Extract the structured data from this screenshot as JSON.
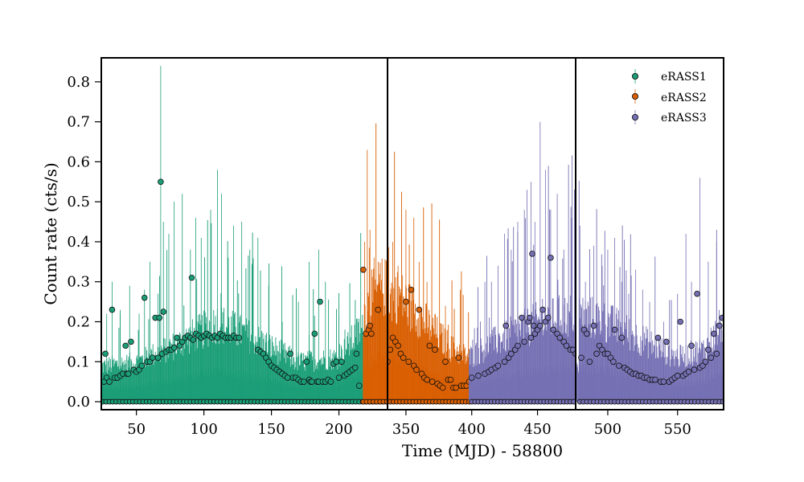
{
  "chart_data": {
    "type": "scatter",
    "xlabel": "Time (MJD) - 58800",
    "ylabel": "Count rate (cts/s)",
    "ylim": [
      -0.02,
      0.86
    ],
    "y_ticks": [
      "0.0",
      "0.1",
      "0.2",
      "0.3",
      "0.4",
      "0.5",
      "0.6",
      "0.7",
      "0.8"
    ],
    "y_tick_values": [
      0.0,
      0.1,
      0.2,
      0.3,
      0.4,
      0.5,
      0.6,
      0.7,
      0.8
    ],
    "grid": false,
    "legend_position": "top-right",
    "panels": [
      {
        "xlim": [
          24,
          236
        ],
        "x_ticks": [
          "50",
          "100",
          "150",
          "200"
        ],
        "x_tick_values": [
          50,
          100,
          150,
          200
        ]
      },
      {
        "xlim": [
          336,
          479
        ],
        "x_ticks": [
          "350",
          "400",
          "450"
        ],
        "x_tick_values": [
          350,
          400,
          450
        ]
      },
      {
        "xlim": [
          477,
          583
        ],
        "x_ticks": [
          "500",
          "550"
        ],
        "x_tick_values": [
          500,
          550
        ]
      }
    ],
    "series": [
      {
        "name": "eRASS1",
        "color": "#1b9e77",
        "x": [
          26,
          27,
          28,
          30,
          32,
          34,
          36,
          38,
          40,
          42,
          43,
          44,
          46,
          48,
          50,
          52,
          54,
          56,
          58,
          60,
          62,
          64,
          66,
          67,
          68,
          69,
          70,
          72,
          74,
          76,
          78,
          80,
          82,
          84,
          86,
          88,
          90,
          91,
          92,
          94,
          96,
          98,
          100,
          102,
          104,
          106,
          108,
          110,
          112,
          114,
          116,
          118,
          120,
          122,
          124,
          126,
          140,
          142,
          144,
          146,
          148,
          150,
          152,
          154,
          156,
          158,
          160,
          162,
          164,
          166,
          168,
          170,
          172,
          174,
          176,
          178,
          179,
          180,
          182,
          184,
          185,
          186,
          188,
          190,
          192,
          194,
          196,
          198,
          200,
          202,
          204,
          206,
          208,
          210,
          212,
          213,
          215
        ],
        "y": [
          0.05,
          0.12,
          0.06,
          0.05,
          0.23,
          0.06,
          0.06,
          0.065,
          0.07,
          0.14,
          0.07,
          0.07,
          0.15,
          0.08,
          0.075,
          0.08,
          0.09,
          0.26,
          0.1,
          0.1,
          0.11,
          0.21,
          0.11,
          0.21,
          0.55,
          0.12,
          0.225,
          0.125,
          0.13,
          0.13,
          0.135,
          0.16,
          0.14,
          0.15,
          0.16,
          0.165,
          0.16,
          0.31,
          0.155,
          0.17,
          0.165,
          0.16,
          0.165,
          0.17,
          0.165,
          0.16,
          0.165,
          0.16,
          0.17,
          0.165,
          0.16,
          0.16,
          0.16,
          0.165,
          0.16,
          0.16,
          0.13,
          0.125,
          0.12,
          0.11,
          0.1,
          0.09,
          0.085,
          0.08,
          0.075,
          0.07,
          0.065,
          0.06,
          0.12,
          0.06,
          0.06,
          0.055,
          0.05,
          0.05,
          0.1,
          0.055,
          0.05,
          0.05,
          0.17,
          0.05,
          0.05,
          0.25,
          0.05,
          0.05,
          0.055,
          0.05,
          0.095,
          0.1,
          0.06,
          0.1,
          0.065,
          0.07,
          0.075,
          0.08,
          0.085,
          0.12,
          0.04
        ],
        "zero_points": [
          25,
          236,
          2.5
        ],
        "envelope": [
          [
            24,
            0.04
          ],
          [
            50,
            0.045
          ],
          [
            80,
            0.065
          ],
          [
            110,
            0.09
          ],
          [
            140,
            0.07
          ],
          [
            170,
            0.045
          ],
          [
            200,
            0.05
          ],
          [
            215,
            0.08
          ]
        ],
        "bar_range": [
          24,
          218
        ],
        "bar_step": 0.45,
        "bar_height_hint": [
          0.1,
          0.4
        ],
        "tall_bars": [
          [
            28,
            0.22
          ],
          [
            32,
            0.3
          ],
          [
            38,
            0.23
          ],
          [
            45,
            0.29
          ],
          [
            52,
            0.22
          ],
          [
            56,
            0.28
          ],
          [
            60,
            0.35
          ],
          [
            66,
            0.27
          ],
          [
            68,
            0.84
          ],
          [
            70,
            0.45
          ],
          [
            74,
            0.42
          ],
          [
            78,
            0.5
          ],
          [
            84,
            0.52
          ],
          [
            90,
            0.38
          ],
          [
            94,
            0.46
          ],
          [
            98,
            0.41
          ],
          [
            105,
            0.48
          ],
          [
            110,
            0.58
          ],
          [
            113,
            0.52
          ],
          [
            118,
            0.36
          ],
          [
            122,
            0.44
          ],
          [
            128,
            0.45
          ],
          [
            134,
            0.38
          ],
          [
            140,
            0.41
          ],
          [
            148,
            0.29
          ],
          [
            158,
            0.2
          ],
          [
            170,
            0.25
          ],
          [
            178,
            0.35
          ],
          [
            185,
            0.38
          ],
          [
            190,
            0.3
          ],
          [
            200,
            0.22
          ]
        ]
      },
      {
        "name": "eRASS2",
        "color": "#d95f02",
        "x": [
          218,
          220,
          222,
          223,
          224,
          229,
          336,
          338,
          340,
          342,
          344,
          346,
          348,
          350,
          352,
          354,
          356,
          358,
          360,
          362,
          364,
          366,
          368,
          370,
          372,
          374,
          376,
          378,
          380,
          382,
          384,
          386,
          388,
          390,
          392,
          394,
          396,
          398
        ],
        "y": [
          0.33,
          0.17,
          0.18,
          0.19,
          0.17,
          0.23,
          0.1,
          0.13,
          0.16,
          0.15,
          0.14,
          0.12,
          0.11,
          0.25,
          0.1,
          0.28,
          0.09,
          0.08,
          0.23,
          0.07,
          0.06,
          0.055,
          0.14,
          0.05,
          0.13,
          0.045,
          0.04,
          0.035,
          0.1,
          0.055,
          0.055,
          0.035,
          0.035,
          0.11,
          0.04,
          0.04,
          0.04,
          0.05
        ],
        "zero_points": [
          218,
          399,
          2.5
        ],
        "envelope": [
          [
            218,
            0.1
          ],
          [
            230,
            0.13
          ],
          [
            345,
            0.12
          ],
          [
            365,
            0.09
          ],
          [
            385,
            0.06
          ],
          [
            398,
            0.05
          ]
        ],
        "bar_range": [
          218,
          398
        ],
        "bar_step": 0.45,
        "bar_height_hint": [
          0.1,
          0.35
        ],
        "tall_bars": [
          [
            219,
            0.4
          ],
          [
            221,
            0.63
          ],
          [
            223,
            0.43
          ],
          [
            226,
            0.36
          ],
          [
            230,
            0.3
          ],
          [
            340,
            0.4
          ],
          [
            344,
            0.34
          ],
          [
            350,
            0.48
          ],
          [
            356,
            0.46
          ],
          [
            360,
            0.35
          ],
          [
            366,
            0.3
          ],
          [
            372,
            0.22
          ],
          [
            380,
            0.24
          ]
        ]
      },
      {
        "name": "eRASS3",
        "color": "#7570b3",
        "x": [
          400,
          405,
          410,
          413,
          415,
          418,
          420,
          425,
          426,
          428,
          430,
          433,
          435,
          438,
          440,
          443,
          444,
          445,
          446,
          447,
          448,
          450,
          452,
          454,
          456,
          458,
          460,
          462,
          465,
          467,
          470,
          472,
          475,
          477,
          479,
          481,
          483,
          485,
          487,
          490,
          492,
          494,
          496,
          498,
          500,
          502,
          504,
          505,
          508,
          510,
          512,
          514,
          516,
          518,
          520,
          522,
          524,
          526,
          528,
          530,
          532,
          534,
          536,
          538,
          540,
          542,
          544,
          546,
          548,
          550,
          552,
          554,
          556,
          558,
          560,
          562,
          564,
          566,
          568,
          570,
          572,
          574,
          576,
          578,
          580,
          582
        ],
        "y": [
          0.06,
          0.065,
          0.07,
          0.075,
          0.08,
          0.085,
          0.09,
          0.1,
          0.19,
          0.11,
          0.12,
          0.13,
          0.14,
          0.21,
          0.15,
          0.2,
          0.21,
          0.16,
          0.37,
          0.19,
          0.17,
          0.18,
          0.19,
          0.23,
          0.2,
          0.21,
          0.36,
          0.18,
          0.17,
          0.16,
          0.15,
          0.14,
          0.13,
          0.13,
          0.12,
          0.11,
          0.18,
          0.17,
          0.1,
          0.19,
          0.12,
          0.14,
          0.13,
          0.12,
          0.12,
          0.11,
          0.1,
          0.18,
          0.09,
          0.16,
          0.085,
          0.08,
          0.075,
          0.07,
          0.07,
          0.065,
          0.065,
          0.06,
          0.06,
          0.055,
          0.055,
          0.055,
          0.16,
          0.05,
          0.05,
          0.15,
          0.05,
          0.055,
          0.06,
          0.065,
          0.2,
          0.065,
          0.07,
          0.075,
          0.14,
          0.08,
          0.27,
          0.085,
          0.09,
          0.1,
          0.13,
          0.11,
          0.17,
          0.12,
          0.19,
          0.21
        ],
        "zero_points": [
          400,
          583,
          2.5
        ],
        "envelope": [
          [
            398,
            0.05
          ],
          [
            420,
            0.07
          ],
          [
            450,
            0.09
          ],
          [
            478,
            0.1
          ],
          [
            500,
            0.09
          ],
          [
            525,
            0.07
          ],
          [
            550,
            0.05
          ],
          [
            570,
            0.06
          ],
          [
            583,
            0.09
          ]
        ],
        "bar_range": [
          398,
          583
        ],
        "bar_step": 0.45,
        "bar_height_hint": [
          0.1,
          0.35
        ],
        "tall_bars": [
          [
            410,
            0.3
          ],
          [
            415,
            0.3
          ],
          [
            420,
            0.34
          ],
          [
            425,
            0.42
          ],
          [
            430,
            0.38
          ],
          [
            435,
            0.45
          ],
          [
            440,
            0.48
          ],
          [
            442,
            0.53
          ],
          [
            445,
            0.55
          ],
          [
            448,
            0.45
          ],
          [
            452,
            0.7
          ],
          [
            456,
            0.58
          ],
          [
            460,
            0.48
          ],
          [
            465,
            0.52
          ],
          [
            470,
            0.38
          ],
          [
            476,
            0.46
          ],
          [
            480,
            0.44
          ],
          [
            484,
            0.3
          ],
          [
            490,
            0.39
          ],
          [
            496,
            0.34
          ],
          [
            500,
            0.38
          ],
          [
            505,
            0.41
          ],
          [
            510,
            0.3
          ],
          [
            515,
            0.27
          ],
          [
            520,
            0.33
          ],
          [
            525,
            0.28
          ],
          [
            530,
            0.25
          ],
          [
            540,
            0.2
          ],
          [
            550,
            0.27
          ],
          [
            556,
            0.42
          ],
          [
            560,
            0.3
          ],
          [
            566,
            0.56
          ],
          [
            572,
            0.35
          ],
          [
            578,
            0.4
          ]
        ]
      }
    ]
  }
}
